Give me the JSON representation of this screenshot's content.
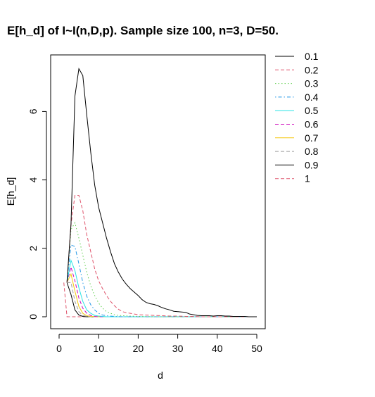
{
  "chart_data": {
    "type": "line",
    "title": "E[h_d] of I~I(n,D,p). Sample size 100, n=3, D=50.",
    "xlabel": "d",
    "ylabel": "E[h_d]",
    "xlim": [
      0,
      50
    ],
    "ylim": [
      0,
      7.3
    ],
    "xticks": [
      0,
      10,
      20,
      30,
      40,
      50
    ],
    "yticks": [
      0,
      2,
      4,
      6
    ],
    "grid": false,
    "legend_placement": "right",
    "series": [
      {
        "name": "0.1",
        "color": "#000000",
        "dash": "solid",
        "x": [
          2,
          3,
          4,
          5,
          6,
          7,
          8,
          9,
          10,
          11,
          12,
          13,
          14,
          15,
          16,
          17,
          18,
          19,
          20,
          21,
          22,
          23,
          24,
          25,
          26,
          27,
          28,
          29,
          30,
          31,
          32,
          33,
          34,
          35,
          36,
          37,
          38,
          39,
          40,
          41,
          42,
          43,
          44,
          45,
          46,
          47,
          48,
          49,
          50
        ],
        "y": [
          1.02,
          2.7,
          6.45,
          7.25,
          7.05,
          5.9,
          4.8,
          3.85,
          3.2,
          2.75,
          2.3,
          1.9,
          1.55,
          1.3,
          1.1,
          0.95,
          0.82,
          0.72,
          0.62,
          0.5,
          0.42,
          0.38,
          0.36,
          0.32,
          0.27,
          0.23,
          0.2,
          0.16,
          0.15,
          0.14,
          0.13,
          0.08,
          0.06,
          0.04,
          0.03,
          0.03,
          0.03,
          0.02,
          0.03,
          0.03,
          0.02,
          0.02,
          0.01,
          0.01,
          0.01,
          0.01,
          0.0,
          0.0,
          0.0
        ]
      },
      {
        "name": "0.2",
        "color": "#DF536B",
        "dash": "dashed",
        "x": [
          2,
          3,
          4,
          5,
          6,
          7,
          8,
          9,
          10,
          11,
          12,
          13,
          14,
          15,
          16,
          17,
          18,
          19,
          20,
          22,
          24,
          26,
          28,
          30,
          32,
          34,
          36,
          40,
          45,
          50
        ],
        "y": [
          1.0,
          2.7,
          3.55,
          3.55,
          3.1,
          2.4,
          1.9,
          1.4,
          1.05,
          0.82,
          0.62,
          0.45,
          0.32,
          0.22,
          0.15,
          0.12,
          0.1,
          0.08,
          0.06,
          0.05,
          0.04,
          0.03,
          0.02,
          0.02,
          0.01,
          0.01,
          0.0,
          0.0,
          0.0,
          0.0
        ]
      },
      {
        "name": "0.3",
        "color": "#61D04F",
        "dash": "dotted",
        "x": [
          2,
          3,
          4,
          5,
          6,
          7,
          8,
          9,
          10,
          11,
          12,
          13,
          14,
          15,
          16,
          18,
          20,
          25,
          30,
          40,
          50
        ],
        "y": [
          1.0,
          2.55,
          2.75,
          2.3,
          1.8,
          1.3,
          0.9,
          0.62,
          0.4,
          0.25,
          0.15,
          0.1,
          0.06,
          0.04,
          0.03,
          0.02,
          0.01,
          0.0,
          0.0,
          0.0,
          0.0
        ]
      },
      {
        "name": "0.4",
        "color": "#2297E6",
        "dash": "dotdash",
        "x": [
          2,
          3,
          4,
          5,
          6,
          7,
          8,
          9,
          10,
          11,
          12,
          14,
          16,
          20,
          30,
          40,
          50
        ],
        "y": [
          1.0,
          2.1,
          2.05,
          1.55,
          1.0,
          0.6,
          0.35,
          0.2,
          0.1,
          0.05,
          0.03,
          0.01,
          0.0,
          0.0,
          0.0,
          0.0,
          0.0
        ]
      },
      {
        "name": "0.5",
        "color": "#28E2E5",
        "dash": "solid",
        "x": [
          2,
          3,
          4,
          5,
          6,
          7,
          8,
          9,
          10,
          12,
          15,
          20,
          30,
          40,
          50
        ],
        "y": [
          1.0,
          1.65,
          1.35,
          0.85,
          0.45,
          0.2,
          0.1,
          0.04,
          0.02,
          0.0,
          0.0,
          0.0,
          0.0,
          0.0,
          0.0
        ]
      },
      {
        "name": "0.6",
        "color": "#CD0BBC",
        "dash": "dashed",
        "x": [
          2,
          3,
          4,
          5,
          6,
          7,
          8,
          9,
          10,
          12,
          15,
          20,
          30,
          40,
          50
        ],
        "y": [
          1.0,
          1.45,
          1.05,
          0.55,
          0.25,
          0.1,
          0.04,
          0.01,
          0.0,
          0.0,
          0.0,
          0.0,
          0.0,
          0.0,
          0.0
        ]
      },
      {
        "name": "0.7",
        "color": "#F5C710",
        "dash": "solid",
        "x": [
          2,
          3,
          4,
          5,
          6,
          7,
          8,
          10,
          15,
          20,
          30,
          40,
          50
        ],
        "y": [
          1.0,
          1.25,
          0.75,
          0.3,
          0.1,
          0.03,
          0.01,
          0.0,
          0.0,
          0.0,
          0.0,
          0.0,
          0.0
        ]
      },
      {
        "name": "0.8",
        "color": "#9E9E9E",
        "dash": "dashed",
        "x": [
          2,
          3,
          4,
          5,
          6,
          7,
          8,
          10,
          15,
          20,
          30,
          40,
          50
        ],
        "y": [
          1.0,
          1.0,
          0.45,
          0.15,
          0.04,
          0.01,
          0.0,
          0.0,
          0.0,
          0.0,
          0.0,
          0.0,
          0.0
        ]
      },
      {
        "name": "0.9",
        "color": "#000000",
        "dash": "solid",
        "x": [
          2,
          3,
          4,
          5,
          6,
          7,
          8,
          10,
          15,
          20,
          30,
          40,
          50
        ],
        "y": [
          1.0,
          0.65,
          0.2,
          0.05,
          0.01,
          0.0,
          0.0,
          0.0,
          0.0,
          0.0,
          0.0,
          0.0,
          0.0
        ]
      },
      {
        "name": "1",
        "color": "#DF536B",
        "dash": "dashed",
        "x": [
          1.2,
          2,
          3,
          5,
          10,
          20,
          30,
          40,
          50
        ],
        "y": [
          1.0,
          0.0,
          0.0,
          0.0,
          0.0,
          0.0,
          0.0,
          0.0,
          0.0
        ]
      }
    ]
  }
}
